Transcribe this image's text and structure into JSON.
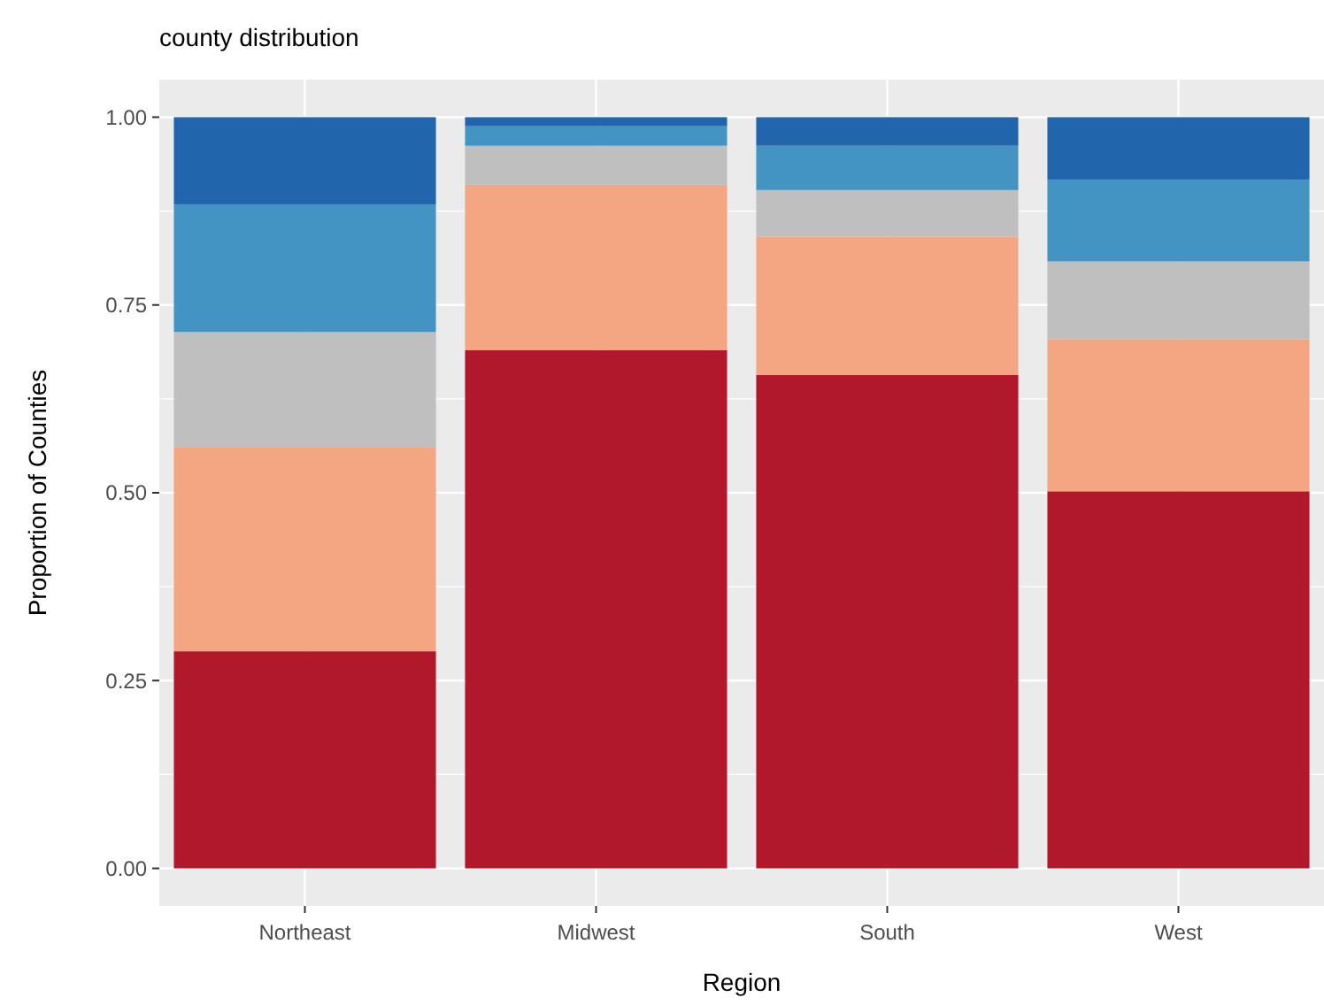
{
  "chart_data": {
    "type": "bar",
    "title": "county distribution",
    "xlabel": "Region",
    "ylabel": "Proportion of Counties",
    "categories": [
      "Northeast",
      "Midwest",
      "South",
      "West"
    ],
    "stacked": true,
    "series": [
      {
        "color": "#b2182b",
        "values": [
          0.289,
          0.69,
          0.657,
          0.502
        ]
      },
      {
        "color": "#f4a582",
        "values": [
          0.272,
          0.22,
          0.184,
          0.202
        ]
      },
      {
        "color": "#bfbfbf",
        "values": [
          0.153,
          0.052,
          0.062,
          0.104
        ]
      },
      {
        "color": "#4393c3",
        "values": [
          0.17,
          0.026,
          0.059,
          0.109
        ]
      },
      {
        "color": "#2166ac",
        "values": [
          0.116,
          0.012,
          0.038,
          0.083
        ]
      }
    ],
    "ylim": [
      -0.05,
      1.05
    ],
    "yticks": [
      {
        "value": 0,
        "label": "0.00"
      },
      {
        "value": 0.25,
        "label": "0.25"
      },
      {
        "value": 0.5,
        "label": "0.50"
      },
      {
        "value": 0.75,
        "label": "0.75"
      },
      {
        "value": 1,
        "label": "1.00"
      }
    ],
    "grid": true
  }
}
